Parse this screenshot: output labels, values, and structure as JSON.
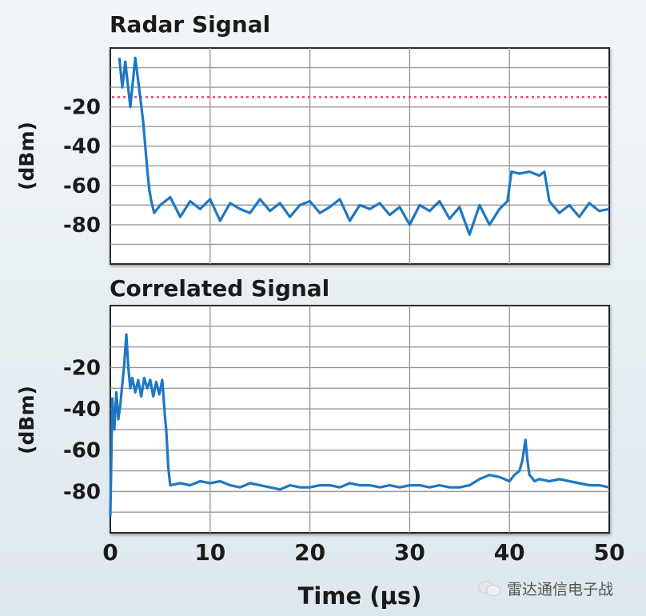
{
  "chart_data": [
    {
      "type": "line",
      "title": "Radar Signal",
      "ylabel": "(dBm)",
      "xlabel": "",
      "xlim": [
        0,
        50
      ],
      "ylim": [
        -100,
        10
      ],
      "x_ticks": [
        0,
        10,
        20,
        30,
        40,
        50
      ],
      "y_ticks": [
        -20,
        -40,
        -60,
        -80
      ],
      "y_tick_labels": [
        "-20",
        "-40",
        "-60",
        "-80"
      ],
      "grid": true,
      "reference_line": {
        "y": -15,
        "style": "dotted",
        "color": "#e8467a"
      },
      "series": [
        {
          "color": "#1f77c4",
          "x": [
            0.9,
            1.2,
            1.5,
            2.0,
            2.5,
            3.0,
            3.3,
            3.5,
            3.7,
            3.9,
            4.1,
            4.4,
            5,
            6,
            7,
            8,
            9,
            10,
            11,
            12,
            13,
            14,
            15,
            16,
            17,
            18,
            19,
            20,
            21,
            22,
            23,
            24,
            25,
            26,
            27,
            28,
            29,
            30,
            31,
            32,
            33,
            34,
            35,
            36,
            37,
            38,
            39,
            39.8,
            40.2,
            41,
            42,
            43,
            43.5,
            44,
            45,
            46,
            47,
            48,
            49,
            50
          ],
          "y": [
            5,
            -10,
            3,
            -20,
            5,
            -15,
            -28,
            -40,
            -52,
            -62,
            -68,
            -74,
            -70,
            -66,
            -76,
            -68,
            -72,
            -67,
            -78,
            -69,
            -72,
            -74,
            -67,
            -73,
            -69,
            -76,
            -70,
            -68,
            -74,
            -71,
            -67,
            -78,
            -70,
            -72,
            -69,
            -75,
            -71,
            -80,
            -70,
            -73,
            -68,
            -77,
            -71,
            -85,
            -70,
            -80,
            -72,
            -68,
            -53,
            -54,
            -53,
            -55,
            -53,
            -68,
            -74,
            -70,
            -76,
            -69,
            -73,
            -72
          ]
        }
      ]
    },
    {
      "type": "line",
      "title": "Correlated Signal",
      "ylabel": "(dBm)",
      "xlabel": "Time (μs)",
      "xlim": [
        0,
        50
      ],
      "ylim": [
        -100,
        10
      ],
      "x_ticks": [
        0,
        10,
        20,
        30,
        40,
        50
      ],
      "x_tick_labels": [
        "0",
        "10",
        "20",
        "30",
        "40",
        "50"
      ],
      "y_ticks": [
        -20,
        -40,
        -60,
        -80
      ],
      "y_tick_labels": [
        "-20",
        "-40",
        "-60",
        "-80"
      ],
      "grid": true,
      "series": [
        {
          "color": "#1f77c4",
          "x": [
            0.0,
            0.2,
            0.4,
            0.6,
            0.8,
            1.0,
            1.2,
            1.4,
            1.6,
            1.8,
            2.0,
            2.2,
            2.5,
            2.8,
            3.1,
            3.4,
            3.7,
            4.0,
            4.3,
            4.6,
            4.9,
            5.2,
            5.5,
            5.6,
            5.7,
            5.8,
            6,
            7,
            8,
            9,
            10,
            11,
            12,
            13,
            14,
            15,
            16,
            17,
            18,
            19,
            20,
            21,
            22,
            23,
            24,
            25,
            26,
            27,
            28,
            29,
            30,
            31,
            32,
            33,
            34,
            35,
            36,
            37,
            38,
            39,
            40,
            40.5,
            41,
            41.3,
            41.6,
            41.8,
            42.0,
            42.2,
            42.5,
            43,
            44,
            45,
            46,
            47,
            48,
            49,
            50
          ],
          "y": [
            -92,
            -35,
            -50,
            -32,
            -45,
            -38,
            -28,
            -18,
            -4,
            -20,
            -30,
            -25,
            -32,
            -26,
            -34,
            -25,
            -30,
            -26,
            -34,
            -27,
            -33,
            -26,
            -45,
            -50,
            -58,
            -68,
            -77,
            -76,
            -77,
            -75,
            -76,
            -75,
            -77,
            -78,
            -76,
            -77,
            -78,
            -79,
            -77,
            -78,
            -78,
            -77,
            -77,
            -78,
            -76,
            -77,
            -77,
            -78,
            -77,
            -78,
            -77,
            -77,
            -78,
            -77,
            -78,
            -78,
            -77,
            -74,
            -72,
            -73,
            -75,
            -72,
            -70,
            -65,
            -55,
            -65,
            -72,
            -73,
            -75,
            -74,
            -75,
            -74,
            -75,
            -76,
            -77,
            -77,
            -78
          ]
        }
      ]
    }
  ],
  "watermark_text": "雷达通信电子战"
}
